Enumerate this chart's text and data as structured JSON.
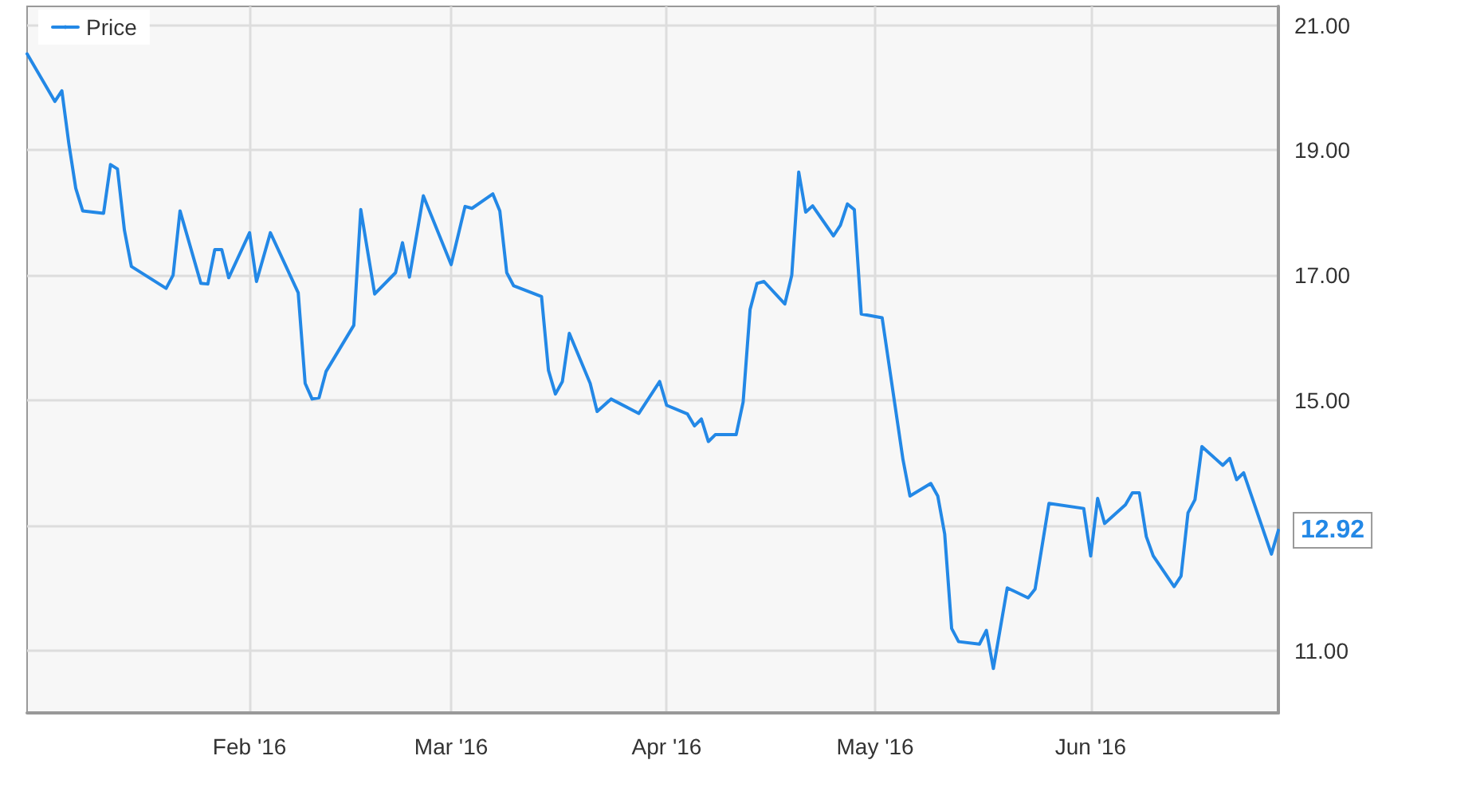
{
  "chart_data": {
    "type": "line",
    "x": [
      "2015-12-31",
      "2016-01-04",
      "2016-01-05",
      "2016-01-06",
      "2016-01-07",
      "2016-01-08",
      "2016-01-11",
      "2016-01-12",
      "2016-01-13",
      "2016-01-14",
      "2016-01-15",
      "2016-01-20",
      "2016-01-21",
      "2016-01-22",
      "2016-01-25",
      "2016-01-26",
      "2016-01-27",
      "2016-01-28",
      "2016-01-29",
      "2016-02-01",
      "2016-02-02",
      "2016-02-04",
      "2016-02-08",
      "2016-02-09",
      "2016-02-10",
      "2016-02-11",
      "2016-02-12",
      "2016-02-16",
      "2016-02-17",
      "2016-02-19",
      "2016-02-22",
      "2016-02-23",
      "2016-02-24",
      "2016-02-26",
      "2016-03-01",
      "2016-03-03",
      "2016-03-04",
      "2016-03-07",
      "2016-03-08",
      "2016-03-09",
      "2016-03-10",
      "2016-03-14",
      "2016-03-15",
      "2016-03-16",
      "2016-03-17",
      "2016-03-18",
      "2016-03-21",
      "2016-03-22",
      "2016-03-24",
      "2016-03-28",
      "2016-03-31",
      "2016-04-01",
      "2016-04-04",
      "2016-04-05",
      "2016-04-06",
      "2016-04-07",
      "2016-04-08",
      "2016-04-11",
      "2016-04-12",
      "2016-04-13",
      "2016-04-14",
      "2016-04-15",
      "2016-04-18",
      "2016-04-19",
      "2016-04-20",
      "2016-04-21",
      "2016-04-22",
      "2016-04-25",
      "2016-04-26",
      "2016-04-27",
      "2016-04-28",
      "2016-04-29",
      "2016-05-02",
      "2016-05-05",
      "2016-05-06",
      "2016-05-09",
      "2016-05-10",
      "2016-05-11",
      "2016-05-12",
      "2016-05-13",
      "2016-05-16",
      "2016-05-17",
      "2016-05-18",
      "2016-05-20",
      "2016-05-23",
      "2016-05-24",
      "2016-05-26",
      "2016-05-31",
      "2016-06-01",
      "2016-06-02",
      "2016-06-03",
      "2016-06-06",
      "2016-06-07",
      "2016-06-08",
      "2016-06-09",
      "2016-06-10",
      "2016-06-13",
      "2016-06-14",
      "2016-06-15",
      "2016-06-16",
      "2016-06-17",
      "2016-06-20",
      "2016-06-21",
      "2016-06-22",
      "2016-06-23",
      "2016-06-27",
      "2016-06-28"
    ],
    "series": [
      {
        "name": "Price",
        "color": "#2388e6",
        "values": [
          20.54,
          19.78,
          19.95,
          19.11,
          18.39,
          18.03,
          17.99,
          18.77,
          18.7,
          17.72,
          17.14,
          16.79,
          17.0,
          18.03,
          16.87,
          16.86,
          17.41,
          17.41,
          16.96,
          17.68,
          16.9,
          17.68,
          16.72,
          15.27,
          15.02,
          15.04,
          15.46,
          16.2,
          18.05,
          16.7,
          17.04,
          17.52,
          16.97,
          18.27,
          17.17,
          18.1,
          18.07,
          18.3,
          18.03,
          17.04,
          16.83,
          16.66,
          15.48,
          15.1,
          15.3,
          16.07,
          15.27,
          14.82,
          15.02,
          14.79,
          15.3,
          14.92,
          14.78,
          14.59,
          14.7,
          14.34,
          14.45,
          14.45,
          14.97,
          16.45,
          16.87,
          16.9,
          16.54,
          17.0,
          18.65,
          18.01,
          18.11,
          17.63,
          17.8,
          18.14,
          18.05,
          16.38,
          16.32,
          14.05,
          13.47,
          13.67,
          13.47,
          12.86,
          11.35,
          11.14,
          11.1,
          11.32,
          10.71,
          12.0,
          11.84,
          11.98,
          13.35,
          13.27,
          12.51,
          13.43,
          13.03,
          13.33,
          13.52,
          13.52,
          12.82,
          12.51,
          12.02,
          12.19,
          13.2,
          13.41,
          14.26,
          13.96,
          14.07,
          13.73,
          13.84,
          12.54,
          12.92
        ]
      }
    ],
    "xlim": [
      "2015-12-31",
      "2016-06-28"
    ],
    "xticks": [
      {
        "value": "2016-02-01",
        "label": "Feb '16"
      },
      {
        "value": "2016-03-01",
        "label": "Mar '16"
      },
      {
        "value": "2016-04-01",
        "label": "Apr '16"
      },
      {
        "value": "2016-05-01",
        "label": "May '16"
      },
      {
        "value": "2016-06-01",
        "label": "Jun '16"
      }
    ],
    "ylim": [
      10,
      21.3
    ],
    "yticks": [
      {
        "value": 11,
        "label": "11.00"
      },
      {
        "value": 13,
        "label": null
      },
      {
        "value": 15,
        "label": "15.00"
      },
      {
        "value": 17,
        "label": "17.00"
      },
      {
        "value": 19,
        "label": "19.00"
      },
      {
        "value": 21,
        "label": "21.00"
      }
    ],
    "annotations": [
      {
        "text": "12.92",
        "x": "2016-06-28",
        "y": 12.92
      }
    ],
    "grid": true,
    "legend": "top left",
    "marker": "none",
    "line_style": "solid"
  }
}
